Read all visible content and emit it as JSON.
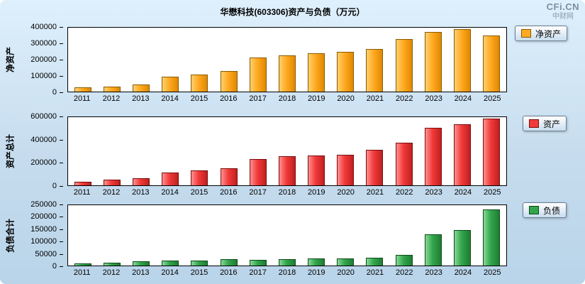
{
  "page": {
    "title": "华懋科技(603306)资产与负债（万元）",
    "logo_main": "CFi.CN",
    "logo_sub": "中财网"
  },
  "chart_data": [
    {
      "type": "bar",
      "title": "净资产",
      "ylabel": "净资产",
      "legend": "净资产",
      "unit": "万元",
      "categories": [
        "2011",
        "2012",
        "2013",
        "2014",
        "2015",
        "2016",
        "2017",
        "2018",
        "2019",
        "2020",
        "2021",
        "2022",
        "2023",
        "2024",
        "2025"
      ],
      "values": [
        25000,
        33000,
        45000,
        93000,
        105000,
        128000,
        213000,
        228000,
        240000,
        250000,
        268000,
        330000,
        373000,
        390000,
        350000
      ],
      "ylim": [
        0,
        400000
      ],
      "yticks": [
        0,
        100000,
        200000,
        300000,
        400000
      ],
      "grid": false,
      "legend_position": "right",
      "colors": {
        "main": "#ffaa22",
        "light": "#ffd06e",
        "dark": "#e08800",
        "border": "#8a5a00"
      }
    },
    {
      "type": "bar",
      "title": "资产总计",
      "ylabel": "资产总计",
      "legend": "资产",
      "unit": "万元",
      "categories": [
        "2011",
        "2012",
        "2013",
        "2014",
        "2015",
        "2016",
        "2017",
        "2018",
        "2019",
        "2020",
        "2021",
        "2022",
        "2023",
        "2024",
        "2025"
      ],
      "values": [
        33000,
        48000,
        62000,
        113000,
        130000,
        153000,
        233000,
        258000,
        263000,
        270000,
        310000,
        375000,
        505000,
        540000,
        585000
      ],
      "ylim": [
        0,
        600000
      ],
      "yticks": [
        0,
        200000,
        400000,
        600000
      ],
      "grid": false,
      "legend_position": "right",
      "colors": {
        "main": "#f23a3a",
        "light": "#ff9090",
        "dark": "#c02020",
        "border": "#7a0c0c"
      }
    },
    {
      "type": "bar",
      "title": "负债合计",
      "ylabel": "负债合计",
      "legend": "负债",
      "unit": "万元",
      "categories": [
        "2011",
        "2012",
        "2013",
        "2014",
        "2015",
        "2016",
        "2017",
        "2018",
        "2019",
        "2020",
        "2021",
        "2022",
        "2023",
        "2024",
        "2025"
      ],
      "values": [
        9000,
        13000,
        17000,
        20000,
        22000,
        26000,
        24000,
        27000,
        28000,
        29000,
        33000,
        45000,
        130000,
        148000,
        232000
      ],
      "ylim": [
        0,
        250000
      ],
      "yticks": [
        0,
        50000,
        100000,
        150000,
        200000,
        250000
      ],
      "grid": false,
      "legend_position": "right",
      "colors": {
        "main": "#33a64c",
        "light": "#86d796",
        "dark": "#1e7d33",
        "border": "#0d4a1b"
      }
    }
  ]
}
